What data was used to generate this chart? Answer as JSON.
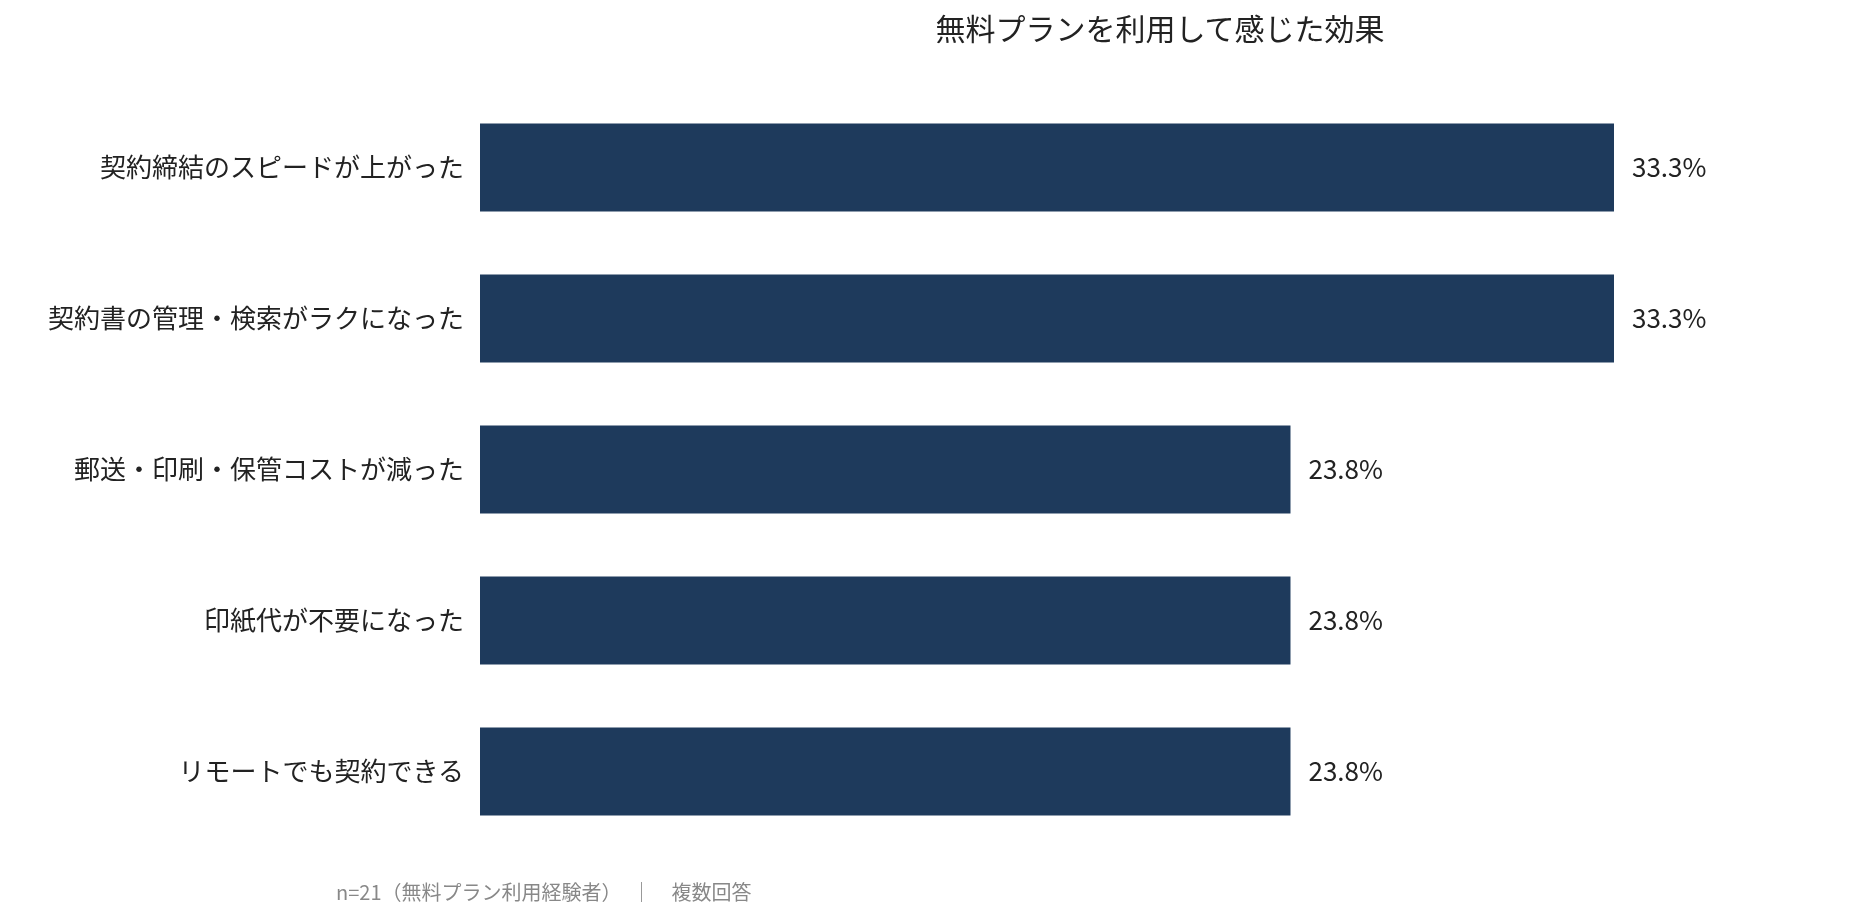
{
  "chart_data": {
    "type": "bar",
    "orientation": "horizontal",
    "title": "無料プランを利用して感じた効果",
    "categories": [
      "契約締結のスピードが上がった",
      "契約書の管理・検索がラクになった",
      "郵送・印刷・保管コストが減った",
      "印紙代が不要になった",
      "リモートでも契約できる"
    ],
    "values": [
      33.3,
      33.3,
      23.8,
      23.8,
      23.8
    ],
    "color": "#1e3a5c",
    "value_labels": [
      "33.3%",
      "33.3%",
      "23.8%",
      "23.8%",
      "23.8%"
    ],
    "annotations": [
      "n=21（無料プラン利用経験者）　｜　複数回答"
    ]
  }
}
